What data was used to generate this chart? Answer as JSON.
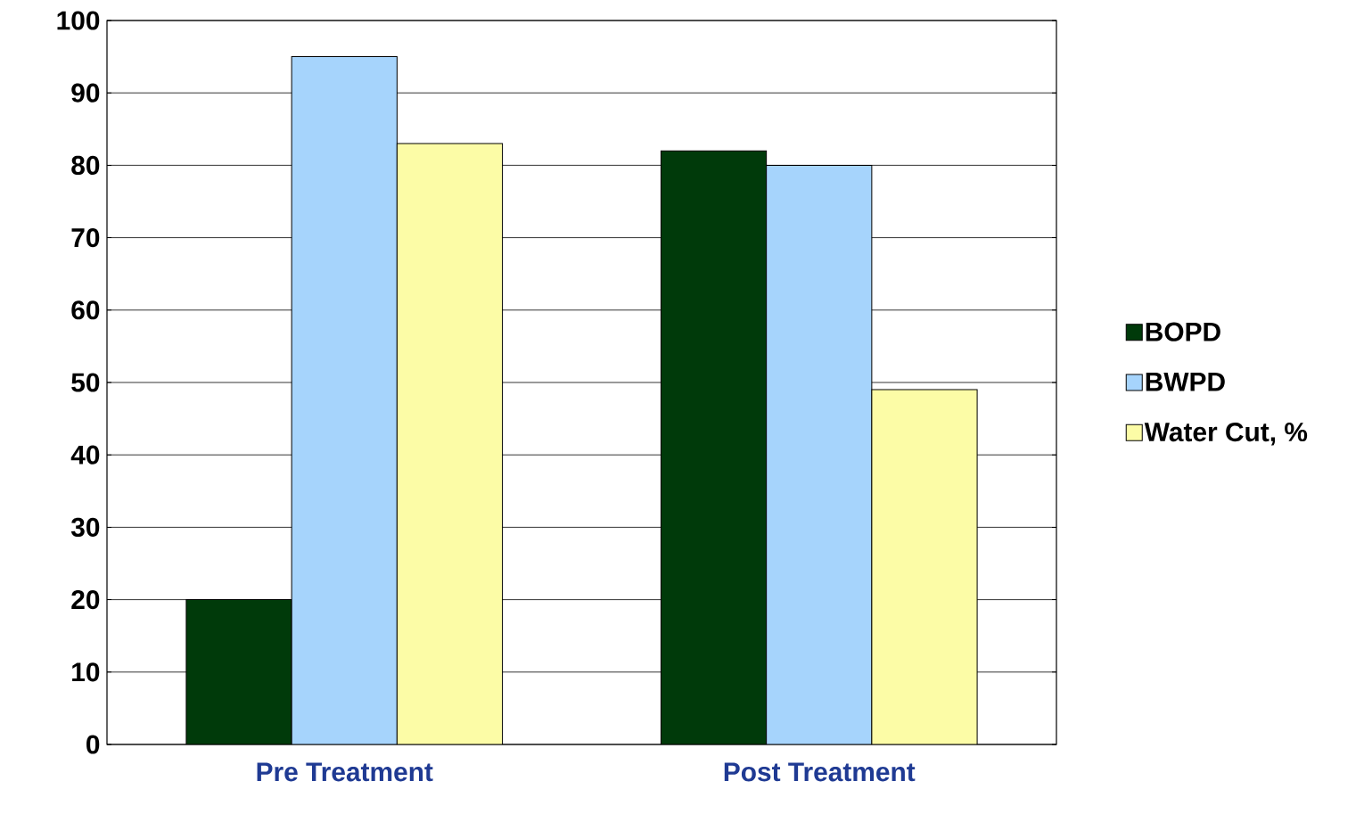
{
  "chart_data": {
    "type": "bar",
    "categories": [
      "Pre Treatment",
      "Post Treatment"
    ],
    "series": [
      {
        "name": "BOPD",
        "color": "#003a0a",
        "values": [
          20,
          82
        ]
      },
      {
        "name": "BWPD",
        "color": "#a6d4fc",
        "values": [
          95,
          80
        ]
      },
      {
        "name": "Water Cut, %",
        "color": "#fcfca6",
        "values": [
          83,
          49
        ]
      }
    ],
    "ylim": [
      0,
      100
    ],
    "yticks": [
      0,
      10,
      20,
      30,
      40,
      50,
      60,
      70,
      80,
      90,
      100
    ],
    "grid": "y",
    "legend": "right"
  }
}
